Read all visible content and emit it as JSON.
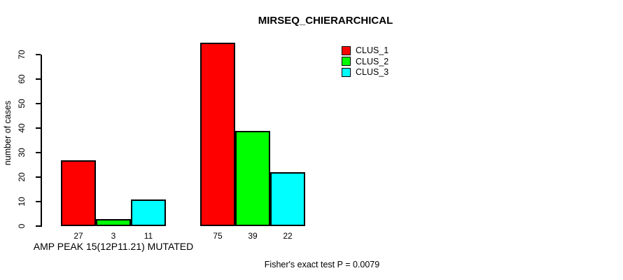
{
  "chart_data": {
    "type": "bar",
    "title": "MIRSEQ_CHIERARCHICAL",
    "ylabel": "number of cases",
    "categories": [
      "AMP PEAK 15(12P11.21) MUTATED",
      ""
    ],
    "series": [
      {
        "name": "CLUS_1",
        "color": "#ff0000",
        "values": [
          27,
          75
        ]
      },
      {
        "name": "CLUS_2",
        "color": "#00ff00",
        "values": [
          3,
          39
        ]
      },
      {
        "name": "CLUS_3",
        "color": "#00ffff",
        "values": [
          11,
          22
        ]
      }
    ],
    "bar_value_labels": [
      "27",
      "3",
      "11",
      "75",
      "39",
      "22"
    ],
    "yticks": [
      0,
      10,
      20,
      30,
      40,
      50,
      60,
      70
    ],
    "ylim": [
      0,
      75
    ],
    "grid": false,
    "legend_position": "top-right",
    "annotation": "Fisher's exact test P = 0.0079"
  },
  "legend": {
    "items": [
      {
        "label": "CLUS_1",
        "color": "#ff0000"
      },
      {
        "label": "CLUS_2",
        "color": "#00ff00"
      },
      {
        "label": "CLUS_3",
        "color": "#00ffff"
      }
    ]
  }
}
